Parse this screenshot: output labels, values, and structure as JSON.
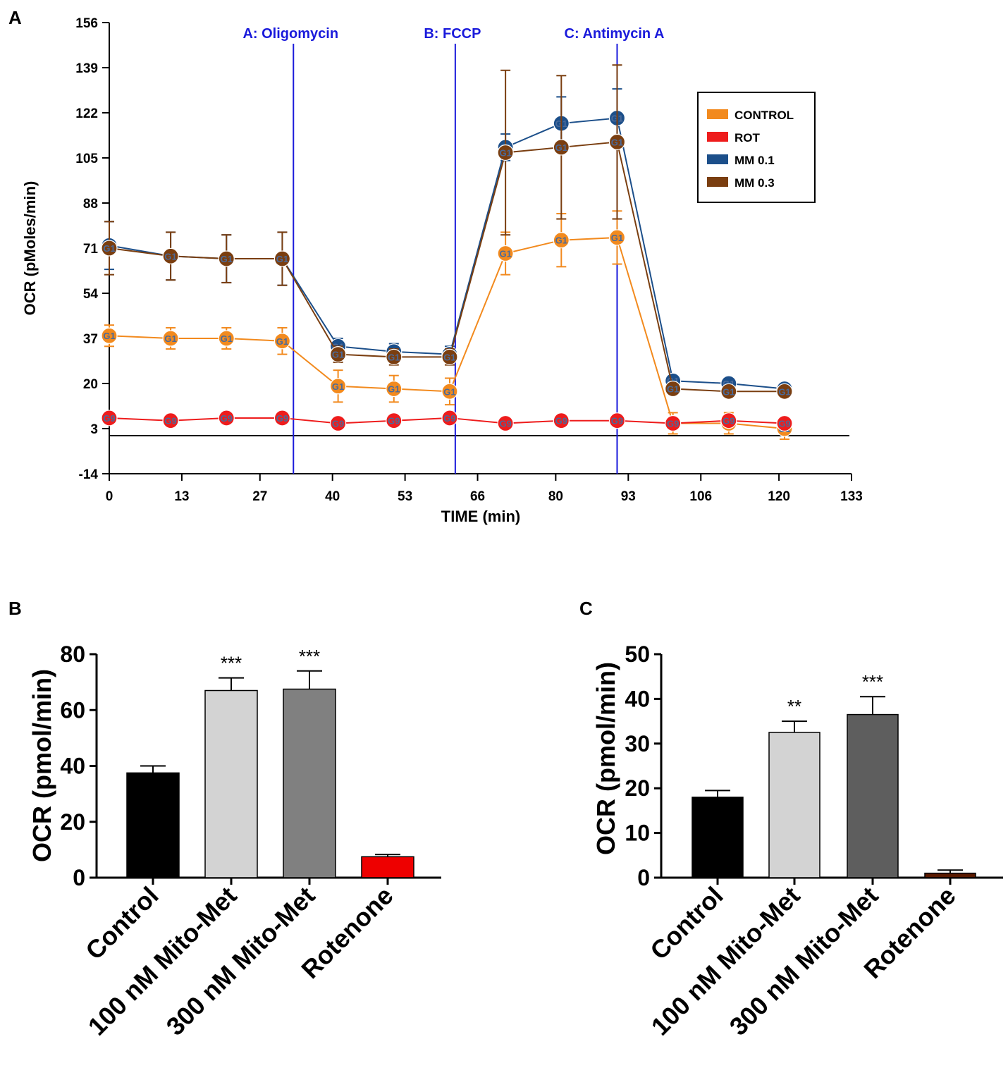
{
  "chart_data": [
    {
      "panel": "A",
      "type": "line",
      "title": "",
      "xlabel": "TIME (min)",
      "ylabel": "OCR (pMoles/min)",
      "xlim": [
        0,
        133
      ],
      "ylim": [
        -14,
        156
      ],
      "xticks": [
        "0",
        "13",
        "27",
        "40",
        "53",
        "66",
        "80",
        "93",
        "106",
        "120",
        "133"
      ],
      "yticks": [
        "156",
        "139",
        "122",
        "105",
        "88",
        "71",
        "54",
        "37",
        "20",
        "3",
        "-14"
      ],
      "x": [
        0,
        11,
        21,
        31,
        41,
        51,
        61,
        71,
        81,
        91,
        101,
        111,
        121
      ],
      "injections": [
        {
          "label": "A: Oligomycin",
          "x": 33
        },
        {
          "label": "B: FCCP",
          "x": 62
        },
        {
          "label": "C: Antimycin A",
          "x": 91
        }
      ],
      "marker_labels": {
        "treated": "G1",
        "rotenone": "G9"
      },
      "legend": {
        "position": "top-right"
      },
      "series": [
        {
          "name": "CONTROL",
          "color": "#f28a1e",
          "values": [
            38,
            37,
            37,
            36,
            19,
            18,
            17,
            69,
            74,
            75,
            5,
            5,
            3
          ],
          "errors": [
            4,
            4,
            4,
            5,
            6,
            5,
            5,
            8,
            10,
            10,
            4,
            4,
            4
          ]
        },
        {
          "name": "ROT",
          "color": "#ee1c1c",
          "values": [
            7,
            6,
            7,
            7,
            5,
            6,
            7,
            5,
            6,
            6,
            5,
            6,
            5
          ],
          "errors": [
            1,
            1,
            1,
            1,
            1,
            1,
            1,
            1,
            1,
            1,
            1,
            1,
            1
          ]
        },
        {
          "name": "MM 0.1",
          "color": "#1c4f8a",
          "values": [
            72,
            68,
            67,
            67,
            34,
            32,
            31,
            109,
            118,
            120,
            21,
            20,
            18
          ],
          "errors": [
            9,
            9,
            9,
            10,
            3,
            3,
            3,
            5,
            10,
            11,
            2,
            2,
            2
          ]
        },
        {
          "name": "MM 0.3",
          "color": "#7a3e10",
          "values": [
            71,
            68,
            67,
            67,
            31,
            30,
            30,
            107,
            109,
            111,
            18,
            17,
            17
          ],
          "errors": [
            10,
            9,
            9,
            10,
            3,
            3,
            3,
            31,
            27,
            29,
            2,
            2,
            2
          ]
        }
      ]
    },
    {
      "panel": "B",
      "type": "bar",
      "ylabel": "OCR (pmol/min)",
      "ylim": [
        0,
        80
      ],
      "yticks": [
        "0",
        "20",
        "40",
        "60",
        "80"
      ],
      "categories": [
        "Control",
        "100 nM Mito-Met",
        "300 nM Mito-Met",
        "Rotenone"
      ],
      "values": [
        37.5,
        67,
        67.5,
        7.5
      ],
      "errors": [
        2.5,
        4.5,
        6.5,
        0.8
      ],
      "significance": [
        "",
        "***",
        "***",
        ""
      ],
      "colors": [
        "#000000",
        "#d3d3d3",
        "#808080",
        "#ee0000"
      ]
    },
    {
      "panel": "C",
      "type": "bar",
      "ylabel": "OCR (pmol/min)",
      "ylim": [
        0,
        50
      ],
      "yticks": [
        "0",
        "10",
        "20",
        "30",
        "40",
        "50"
      ],
      "categories": [
        "Control",
        "100 nM Mito-Met",
        "300 nM Mito-Met",
        "Rotenone"
      ],
      "values": [
        18,
        32.5,
        36.5,
        1
      ],
      "errors": [
        1.5,
        2.5,
        4,
        0.7
      ],
      "significance": [
        "",
        "**",
        "***",
        ""
      ],
      "colors": [
        "#000000",
        "#d3d3d3",
        "#5e5e5e",
        "#5a1a00"
      ]
    }
  ],
  "panel_labels": {
    "a": "A",
    "b": "B",
    "c": "C"
  }
}
